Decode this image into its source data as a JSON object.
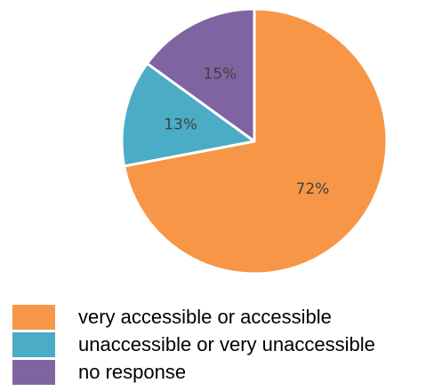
{
  "chart_data": {
    "type": "pie",
    "title": "",
    "start_angle_deg": 0,
    "direction": "clockwise",
    "slices": [
      {
        "label": "very accessible or accessible",
        "value": 72,
        "display": "72%",
        "color": "#F79646"
      },
      {
        "label": "unaccessible or very unaccessible",
        "value": 13,
        "display": "13%",
        "color": "#4BACC6"
      },
      {
        "label": "no response",
        "value": 15,
        "display": "15%",
        "color": "#8064A2"
      }
    ],
    "legend_position": "bottom-left"
  }
}
